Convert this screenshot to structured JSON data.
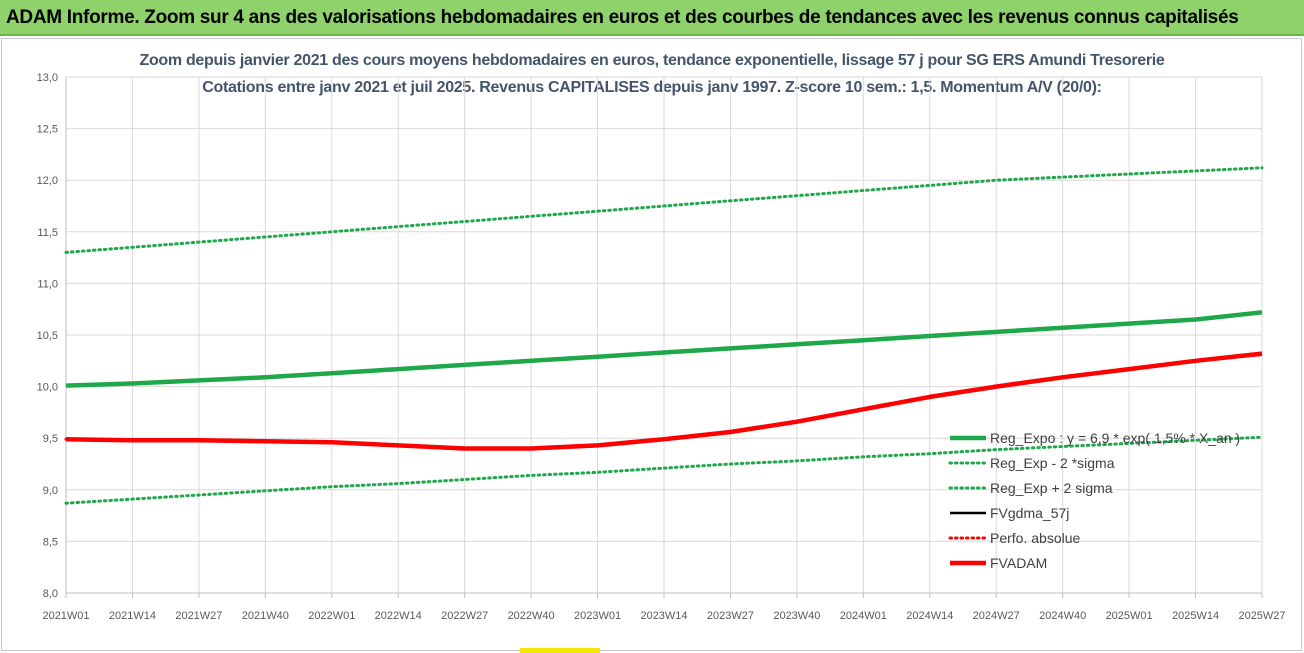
{
  "banner": {
    "title": "ADAM Informe. Zoom sur 4 ans des valorisations hebdomadaires en euros et des courbes de tendances avec les revenus connus capitalisés",
    "color": "#8fd16a"
  },
  "chart_data": {
    "type": "line",
    "title": "Zoom depuis janvier 2021 des cours moyens hebdomadaires en euros, tendance exponentielle, lissage 57 j pour SG ERS Amundi Tresorerie",
    "subtitle": "Cotations entre janv 2021 et juil 2025. Revenus CAPITALISES depuis janv 1997. Z-score 10 sem.: 1,5. Momentum A/V (20/0):",
    "x_ticks": [
      "2021W01",
      "2021W14",
      "2021W27",
      "2021W40",
      "2022W01",
      "2022W14",
      "2022W27",
      "2022W40",
      "2023W01",
      "2023W14",
      "2023W27",
      "2023W40",
      "2024W01",
      "2024W14",
      "2024W27",
      "2024W40",
      "2025W01",
      "2025W14",
      "2025W27"
    ],
    "y_ticks": [
      "8,0",
      "8,5",
      "9,0",
      "9,5",
      "10,0",
      "10,5",
      "11,0",
      "11,5",
      "12,0",
      "12,5",
      "13,0"
    ],
    "ylim": [
      8.0,
      13.0
    ],
    "grid": true,
    "legend_position": "bottom-right",
    "series": [
      {
        "name": "Reg_Expo : y = 6,9 * exp( 1,5% * X_an )",
        "color": "#1ea84a",
        "style": "solid-thick",
        "values": [
          10.01,
          10.03,
          10.06,
          10.09,
          10.13,
          10.17,
          10.21,
          10.25,
          10.29,
          10.33,
          10.37,
          10.41,
          10.45,
          10.49,
          10.53,
          10.57,
          10.61,
          10.65,
          10.72
        ]
      },
      {
        "name": "Reg_Exp - 2 *sigma",
        "color": "#1ea84a",
        "style": "dotted",
        "values": [
          8.87,
          8.91,
          8.95,
          8.99,
          9.03,
          9.06,
          9.1,
          9.14,
          9.17,
          9.21,
          9.25,
          9.28,
          9.32,
          9.35,
          9.39,
          9.42,
          9.45,
          9.48,
          9.51
        ]
      },
      {
        "name": "Reg_Exp + 2 sigma",
        "color": "#1ea84a",
        "style": "dotted",
        "values": [
          11.3,
          11.35,
          11.4,
          11.45,
          11.5,
          11.55,
          11.6,
          11.65,
          11.7,
          11.75,
          11.8,
          11.85,
          11.9,
          11.95,
          12.0,
          12.03,
          12.06,
          12.09,
          12.12
        ]
      },
      {
        "name": "FVgdma_57j",
        "color": "#000000",
        "style": "solid",
        "values": [
          9.49,
          9.48,
          9.48,
          9.47,
          9.46,
          9.43,
          9.4,
          9.4,
          9.43,
          9.49,
          9.56,
          9.66,
          9.78,
          9.9,
          10.0,
          10.09,
          10.17,
          10.25,
          10.31
        ]
      },
      {
        "name": "Perfo. absolue",
        "color": "#ff0000",
        "style": "dotted",
        "values": [
          9.49,
          9.48,
          9.48,
          9.47,
          9.46,
          9.43,
          9.4,
          9.4,
          9.43,
          9.49,
          9.56,
          9.66,
          9.78,
          9.9,
          10.0,
          10.09,
          10.17,
          10.25,
          10.31
        ]
      },
      {
        "name": "FVADAM",
        "color": "#ff0000",
        "style": "solid-thick",
        "values": [
          9.49,
          9.48,
          9.48,
          9.47,
          9.46,
          9.43,
          9.4,
          9.4,
          9.43,
          9.49,
          9.56,
          9.66,
          9.78,
          9.9,
          10.0,
          10.09,
          10.17,
          10.25,
          10.32
        ]
      }
    ]
  }
}
